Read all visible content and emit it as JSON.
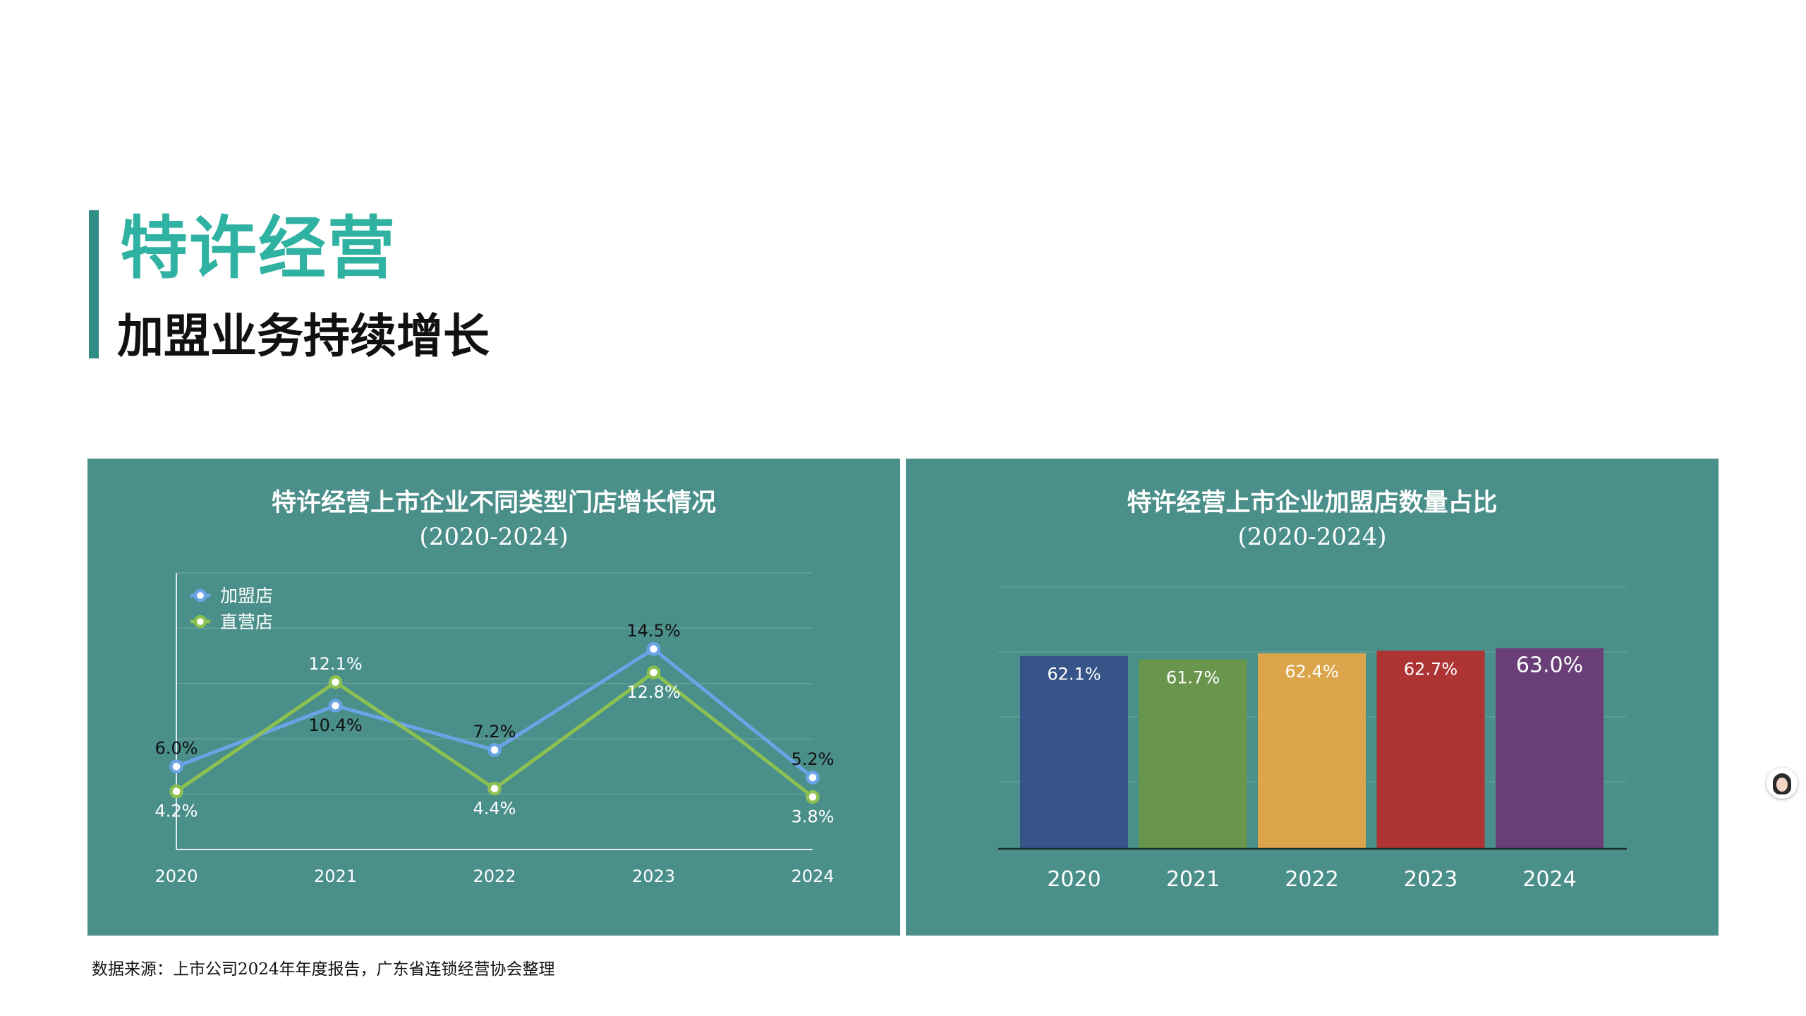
{
  "header": {
    "title": "特许经营",
    "subtitle": "加盟业务持续增长"
  },
  "left_panel": {
    "title_line1": "特许经营上市企业不同类型门店增长情况",
    "title_line2": "(2020-2024)"
  },
  "right_panel": {
    "title_line1": "特许经营上市企业加盟店数量占比",
    "title_line2": "(2020-2024)"
  },
  "source": "数据来源：上市公司2024年年度报告，广东省连锁经营协会整理",
  "colors": {
    "panel_bg": "#4a8f8a",
    "title_teal": "#2fb2a2",
    "franchise_line": "#6ba4e6",
    "direct_line": "#8cc152",
    "bar_2020": "#365487",
    "bar_2021": "#6a954c",
    "bar_2022": "#dca54c",
    "bar_2023": "#ae3434",
    "bar_2024": "#6a3f78"
  },
  "chart_data": [
    {
      "type": "line",
      "title": "特许经营上市企业不同类型门店增长情况",
      "subtitle": "(2020-2024)",
      "x": [
        "2020",
        "2021",
        "2022",
        "2023",
        "2024"
      ],
      "series": [
        {
          "name": "加盟店",
          "values": [
            6.0,
            10.4,
            7.2,
            14.5,
            5.2
          ],
          "labels": [
            "6.0%",
            "10.4%",
            "7.2%",
            "14.5%",
            "5.2%"
          ],
          "color": "#6ba4e6"
        },
        {
          "name": "直营店",
          "values": [
            4.2,
            12.1,
            4.4,
            12.8,
            3.8
          ],
          "labels": [
            "4.2%",
            "12.1%",
            "4.4%",
            "12.8%",
            "3.8%"
          ],
          "color": "#8cc152"
        }
      ],
      "ylim": [
        0,
        20
      ],
      "grid": true,
      "legend": "top-left",
      "y_tick_labels_shown": false
    },
    {
      "type": "bar",
      "title": "特许经营上市企业加盟店数量占比",
      "subtitle": "(2020-2024)",
      "categories": [
        "2020",
        "2021",
        "2022",
        "2023",
        "2024"
      ],
      "values": [
        62.1,
        61.7,
        62.4,
        62.7,
        63.0
      ],
      "labels": [
        "62.1%",
        "61.7%",
        "62.4%",
        "62.7%",
        "63.0%"
      ],
      "colors": [
        "#365487",
        "#6a954c",
        "#dca54c",
        "#ae3434",
        "#6a3f78"
      ],
      "grid": true,
      "y_tick_labels_shown": false
    }
  ]
}
